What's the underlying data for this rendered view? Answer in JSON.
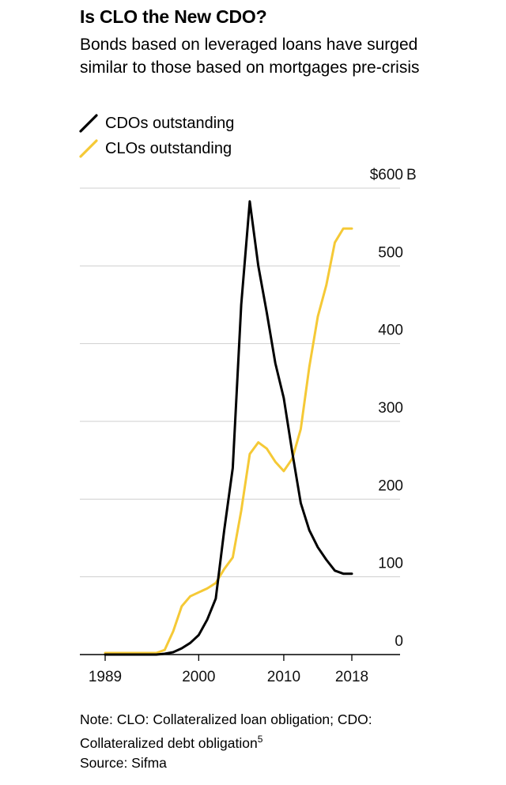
{
  "chart_data": {
    "type": "line",
    "title": "Is CLO the New CDO?",
    "subtitle": "Bonds based on leveraged loans have surged similar to those based on mortgages pre-crisis",
    "xlabel": "",
    "ylabel": "",
    "y_unit": "B",
    "x_ticks": [
      {
        "value": 1989,
        "label": "1989"
      },
      {
        "value": 2000,
        "label": "2000"
      },
      {
        "value": 2010,
        "label": "2010"
      },
      {
        "value": 2018,
        "label": "2018"
      }
    ],
    "y_ticks": [
      {
        "value": 0,
        "label": "0"
      },
      {
        "value": 100,
        "label": "100"
      },
      {
        "value": 200,
        "label": "200"
      },
      {
        "value": 300,
        "label": "300"
      },
      {
        "value": 400,
        "label": "400"
      },
      {
        "value": 500,
        "label": "500"
      },
      {
        "value": 600,
        "label": "$600"
      }
    ],
    "xlim": [
      1986,
      2023
    ],
    "ylim": [
      0,
      600
    ],
    "grid": true,
    "legend_placement": "top-left",
    "series": [
      {
        "name": "CDOs outstanding",
        "color": "#000000",
        "x": [
          1989,
          1995,
          1996,
          1997,
          1998,
          1999,
          2000,
          2001,
          2002,
          2003,
          2004,
          2005,
          2006,
          2007,
          2008,
          2009,
          2010,
          2011,
          2012,
          2013,
          2014,
          2015,
          2016,
          2017,
          2018
        ],
        "values": [
          0,
          0,
          1,
          3,
          8,
          15,
          25,
          45,
          72,
          160,
          240,
          450,
          583,
          500,
          440,
          375,
          330,
          260,
          195,
          160,
          138,
          122,
          108,
          104,
          104
        ]
      },
      {
        "name": "CLOs outstanding",
        "color": "#f5c936",
        "x": [
          1989,
          1995,
          1996,
          1997,
          1998,
          1999,
          2000,
          2001,
          2002,
          2003,
          2004,
          2005,
          2006,
          2007,
          2008,
          2009,
          2010,
          2011,
          2012,
          2013,
          2014,
          2015,
          2016,
          2017,
          2018
        ],
        "values": [
          2,
          2,
          6,
          30,
          62,
          75,
          80,
          85,
          92,
          110,
          125,
          185,
          258,
          273,
          265,
          248,
          236,
          252,
          290,
          370,
          435,
          475,
          530,
          548,
          548
        ]
      }
    ]
  },
  "legend": {
    "items": [
      {
        "label": "CDOs outstanding",
        "color": "#000000"
      },
      {
        "label": "CLOs outstanding",
        "color": "#f5c936"
      }
    ]
  },
  "note": {
    "line1": "Note: CLO: Collateralized loan obligation; CDO:",
    "line2": "Collateralized debt obligation",
    "superscript": "5",
    "source": "Source: Sifma"
  }
}
